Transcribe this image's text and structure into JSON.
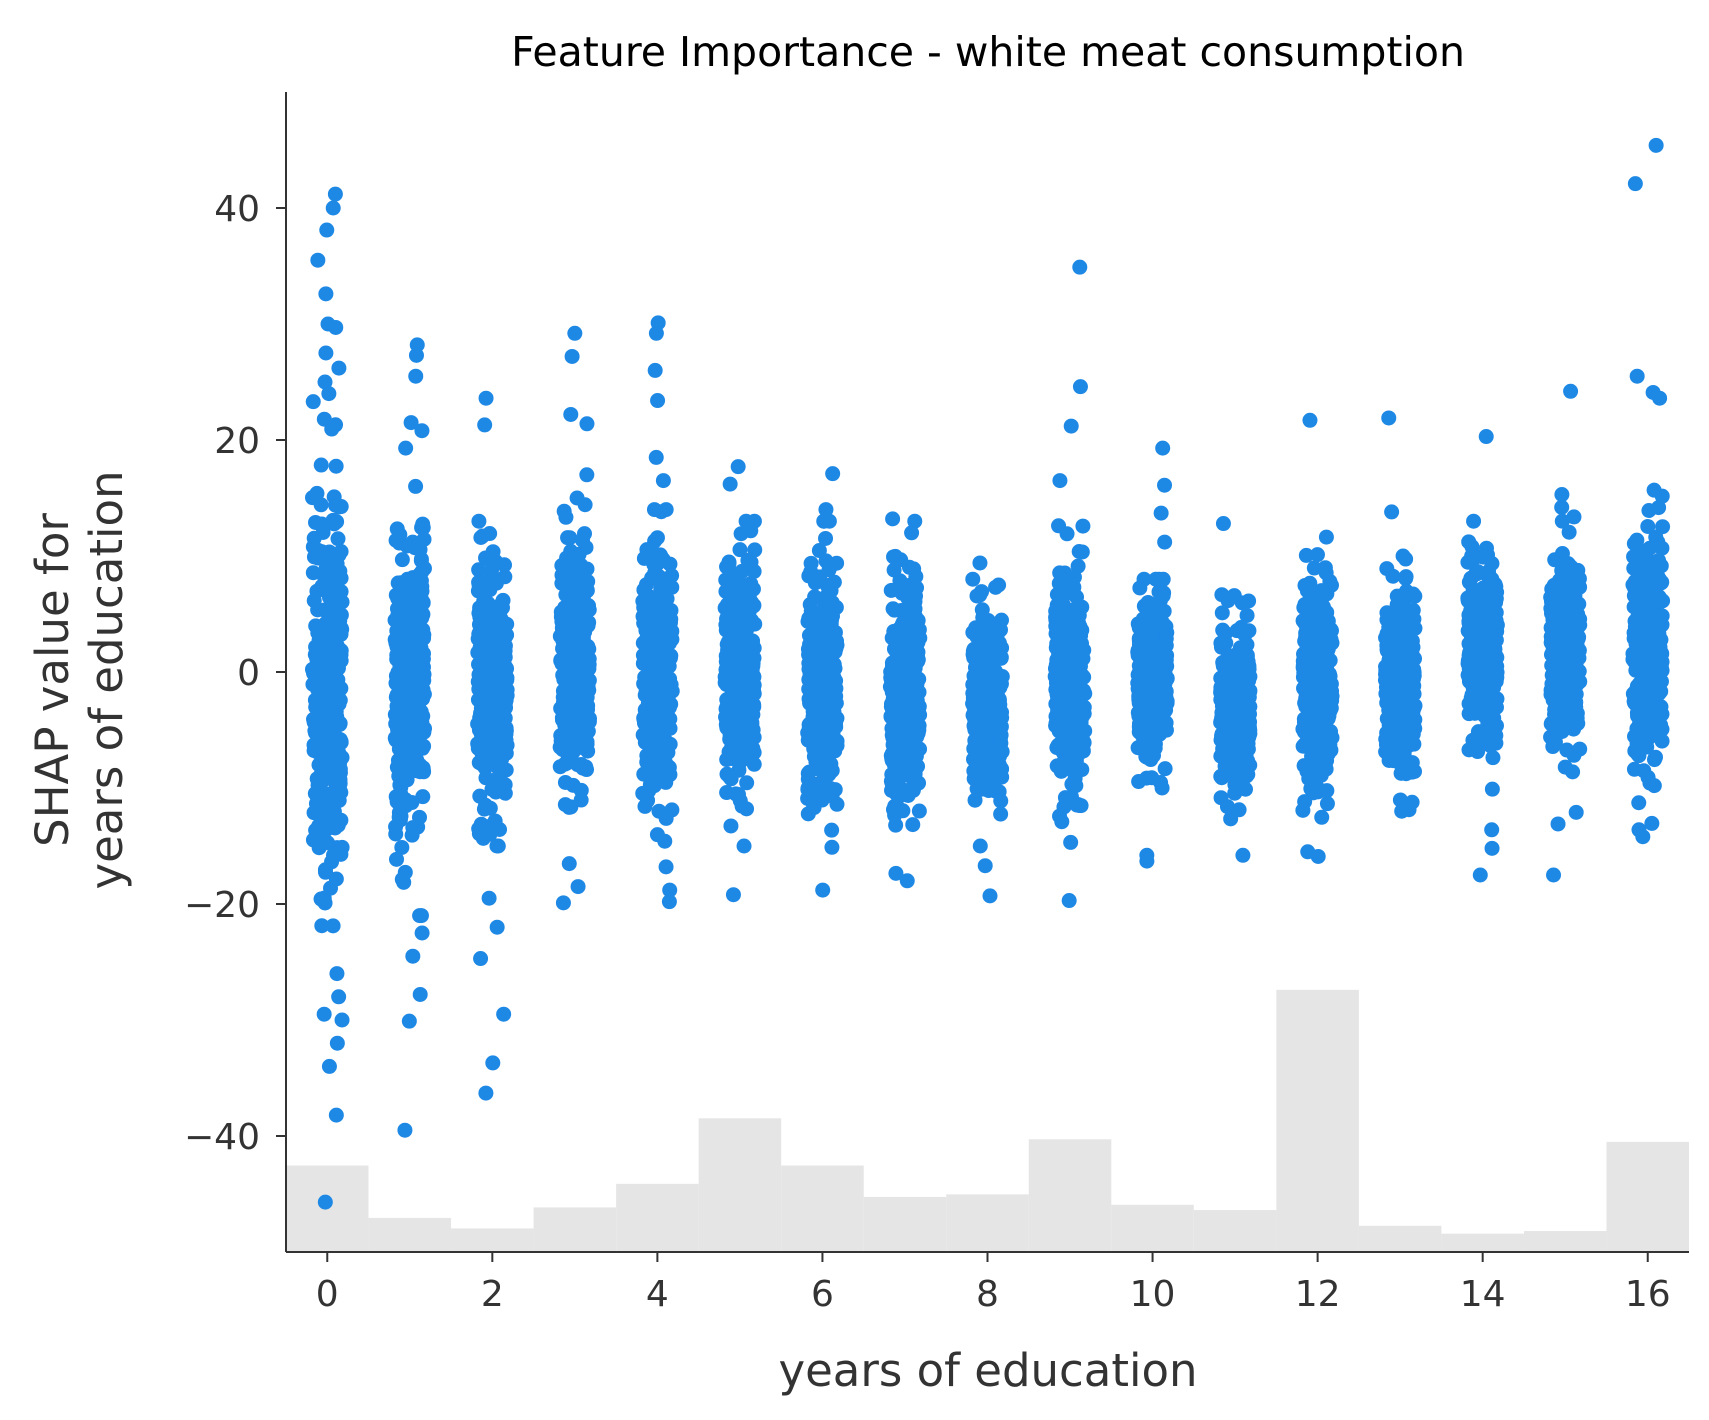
{
  "chart_data": {
    "type": "scatter",
    "title": "Feature Importance - white meat consumption",
    "xlabel": "years of education",
    "ylabel_lines": [
      "SHAP value for",
      "years of education"
    ],
    "xlim": [
      -0.5,
      16.5
    ],
    "ylim": [
      -50,
      50
    ],
    "xticks": [
      {
        "value": 0,
        "label": "0"
      },
      {
        "value": 2,
        "label": "2"
      },
      {
        "value": 4,
        "label": "4"
      },
      {
        "value": 6,
        "label": "6"
      },
      {
        "value": 8,
        "label": "8"
      },
      {
        "value": 10,
        "label": "10"
      },
      {
        "value": 12,
        "label": "12"
      },
      {
        "value": 14,
        "label": "14"
      },
      {
        "value": 16,
        "label": "16"
      }
    ],
    "yticks": [
      {
        "value": 40,
        "label": "40"
      },
      {
        "value": 20,
        "label": "20"
      },
      {
        "value": 0,
        "label": "0"
      },
      {
        "value": -20,
        "label": "−20"
      },
      {
        "value": -40,
        "label": "−40"
      }
    ],
    "grid": false,
    "point_color": "#1e88e5",
    "histogram_color": "#e5e5e5",
    "histogram": {
      "bin_centers": [
        0,
        1,
        2,
        3,
        4,
        5,
        6,
        7,
        8,
        9,
        10,
        11,
        12,
        13,
        14,
        15,
        16
      ],
      "relative_heights": [
        0.33,
        0.13,
        0.09,
        0.17,
        0.26,
        0.51,
        0.33,
        0.21,
        0.22,
        0.43,
        0.18,
        0.16,
        1.0,
        0.1,
        0.07,
        0.08,
        0.42
      ]
    },
    "series": [
      {
        "strips": [
          {
            "x": 0,
            "y_min": -30,
            "y_max": 24,
            "center": -1,
            "spread": 9.5,
            "outliers": [
              41.2,
              40.0,
              38.1,
              35.5,
              32.6,
              30.0,
              29.7,
              27.5,
              26.2,
              25.0,
              -26.0,
              -28.0,
              -29.5,
              -32.0,
              -34.0,
              -38.2,
              -45.7
            ]
          },
          {
            "x": 1,
            "y_min": -21,
            "y_max": 16,
            "center": -1,
            "spread": 6.5,
            "outliers": [
              28.2,
              27.3,
              25.5,
              21.5,
              20.8,
              19.3,
              -22.5,
              -24.5,
              -27.8,
              -30.1,
              -39.5
            ]
          },
          {
            "x": 2,
            "y_min": -15,
            "y_max": 13,
            "center": -1,
            "spread": 5.5,
            "outliers": [
              23.6,
              21.3,
              -19.5,
              -22.0,
              -24.7,
              -29.5,
              -33.7,
              -36.3
            ]
          },
          {
            "x": 3,
            "y_min": -17,
            "y_max": 15,
            "center": 0,
            "spread": 5.5,
            "outliers": [
              29.2,
              27.2,
              22.2,
              21.4,
              17.0,
              -18.5,
              -19.9
            ]
          },
          {
            "x": 4,
            "y_min": -16,
            "y_max": 14,
            "center": 0,
            "spread": 5.5,
            "outliers": [
              30.1,
              29.2,
              26.0,
              23.4,
              18.5,
              16.5,
              -16.8,
              -18.8,
              -19.8
            ]
          },
          {
            "x": 5,
            "y_min": -15,
            "y_max": 13,
            "center": 0,
            "spread": 5.0,
            "outliers": [
              17.7,
              16.2,
              -19.2
            ]
          },
          {
            "x": 6,
            "y_min": -16,
            "y_max": 13,
            "center": -1,
            "spread": 5.0,
            "outliers": [
              17.1,
              14.0,
              -18.8
            ]
          },
          {
            "x": 7,
            "y_min": -18,
            "y_max": 13,
            "center": -2,
            "spread": 5.0,
            "outliers": [
              13.2,
              12.0,
              -18.0
            ]
          },
          {
            "x": 8,
            "y_min": -15,
            "y_max": 8,
            "center": -3,
            "spread": 4.0,
            "outliers": [
              9.4,
              7.5,
              -16.7,
              -19.3
            ]
          },
          {
            "x": 9,
            "y_min": -16,
            "y_max": 15,
            "center": -1,
            "spread": 5.0,
            "outliers": [
              34.9,
              24.6,
              21.2,
              16.5,
              -19.7
            ]
          },
          {
            "x": 10,
            "y_min": -10,
            "y_max": 8,
            "center": -1,
            "spread": 3.5,
            "outliers": [
              19.3,
              16.1,
              13.7,
              11.2,
              -15.8,
              -16.3
            ]
          },
          {
            "x": 11,
            "y_min": -14,
            "y_max": 7,
            "center": -3,
            "spread": 3.5,
            "outliers": [
              12.8,
              -15.8
            ]
          },
          {
            "x": 12,
            "y_min": -15,
            "y_max": 12,
            "center": -1,
            "spread": 4.5,
            "outliers": [
              21.7,
              -15.5,
              -15.9
            ]
          },
          {
            "x": 13,
            "y_min": -12,
            "y_max": 10,
            "center": -1,
            "spread": 4.0,
            "outliers": [
              21.9,
              13.8
            ]
          },
          {
            "x": 14,
            "y_min": -9,
            "y_max": 13,
            "center": 2,
            "spread": 4.0,
            "outliers": [
              20.3,
              -10.1,
              -13.6,
              -15.2,
              -17.5
            ]
          },
          {
            "x": 15,
            "y_min": -9,
            "y_max": 15,
            "center": 2,
            "spread": 4.0,
            "outliers": [
              24.2,
              15.3,
              14.2,
              -12.1,
              -13.1,
              -17.5
            ]
          },
          {
            "x": 16,
            "y_min": -14,
            "y_max": 20,
            "center": 2,
            "spread": 5.0,
            "outliers": [
              45.4,
              42.1,
              25.5,
              24.1,
              23.6,
              -13.6,
              -14.2
            ]
          }
        ]
      }
    ]
  }
}
